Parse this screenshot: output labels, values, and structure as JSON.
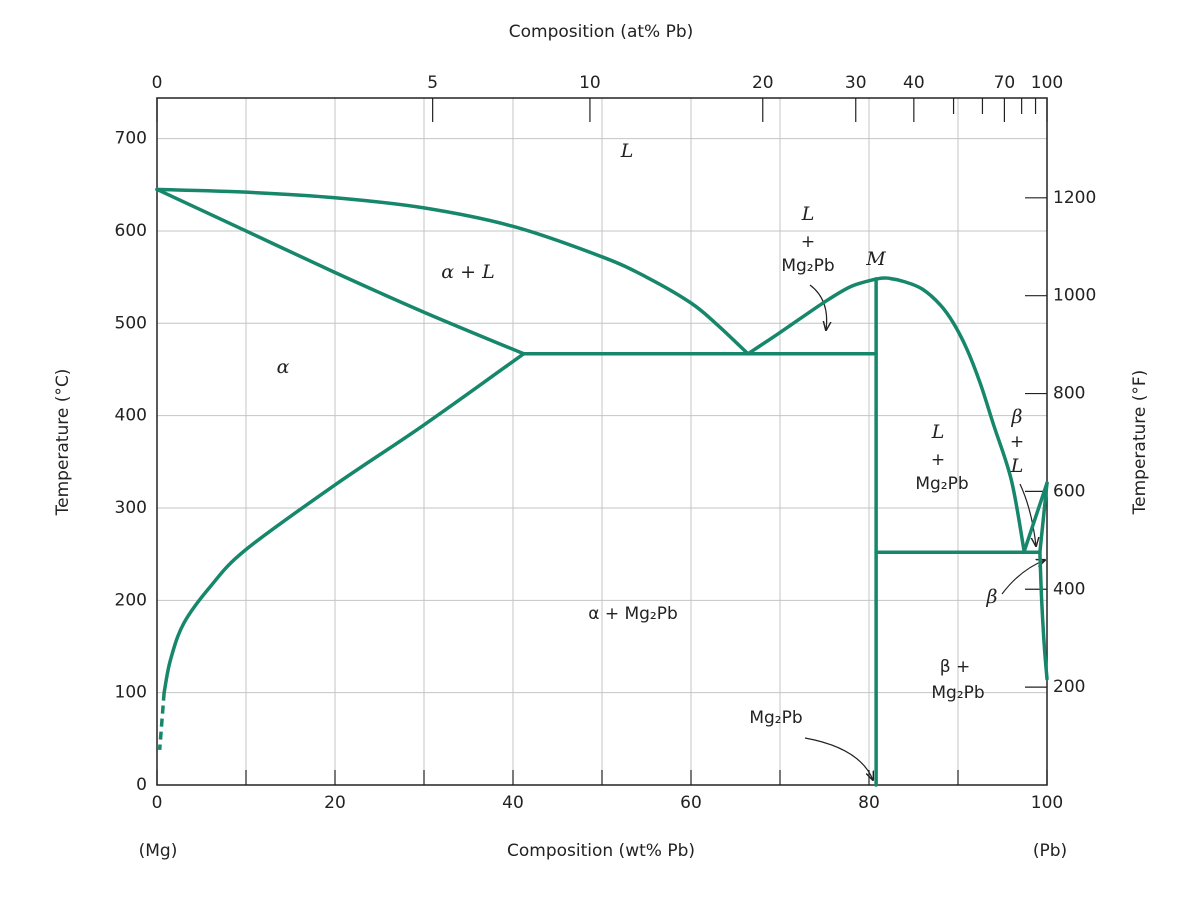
{
  "chart_data": {
    "type": "line",
    "x2label": "Composition (at% Pb)",
    "xlabel": "Composition (wt% Pb)",
    "ylabel": "Temperature (°C)",
    "y2label": "Temperature (°F)",
    "end_labels": [
      "(Mg)",
      "(Pb)"
    ],
    "xlim": [
      0,
      100
    ],
    "xticks": [
      0,
      20,
      40,
      60,
      80,
      100
    ],
    "xminor": [
      10,
      30,
      50,
      70,
      90
    ],
    "x2ticks": [
      0,
      5,
      10,
      20,
      30,
      40,
      70,
      100
    ],
    "x2minor": [
      50,
      60,
      80,
      90
    ],
    "ylim": [
      0,
      744
    ],
    "yticks": [
      0,
      100,
      200,
      300,
      400,
      500,
      600,
      700
    ],
    "y2lim": [
      0,
      1404
    ],
    "y2ticks": [
      200,
      400,
      600,
      800,
      1000,
      1200
    ],
    "grid": true,
    "annotations": [
      "L",
      "α + L",
      "α",
      "α + Mg₂Pb",
      "L",
      "+",
      "Mg₂Pb",
      "M",
      "L",
      "+",
      "Mg₂Pb",
      "β",
      "+",
      "L",
      "β",
      "β +",
      "Mg₂Pb",
      "Mg₂Pb"
    ],
    "series": [
      {
        "color": "#17876b",
        "x": [
          0,
          10,
          20,
          30,
          40,
          50,
          55,
          60,
          63,
          66.4
        ],
        "values": [
          645,
          642,
          636,
          625,
          605,
          572,
          550,
          522,
          498,
          467
        ]
      },
      {
        "color": "#17876b",
        "x": [
          0,
          10,
          20,
          30,
          41.2
        ],
        "values": [
          645,
          600,
          555,
          512,
          467
        ]
      },
      {
        "color": "#17876b",
        "x": [
          41.2,
          30,
          20,
          10,
          6,
          3,
          1.5,
          0.8
        ],
        "values": [
          467,
          390,
          325,
          255,
          215,
          175,
          135,
          100
        ]
      },
      {
        "color": "#17876b",
        "dash": true,
        "x": [
          0.8,
          0.3
        ],
        "values": [
          100,
          38
        ]
      },
      {
        "color": "#17876b",
        "x": [
          41.2,
          80.8
        ],
        "values": [
          467,
          467
        ]
      },
      {
        "color": "#17876b",
        "x": [
          66.4,
          70,
          75,
          78,
          80.8
        ],
        "values": [
          467,
          490,
          523,
          540,
          548
        ]
      },
      {
        "color": "#17876b",
        "x": [
          80.8,
          80.8
        ],
        "values": [
          0,
          548
        ]
      },
      {
        "color": "#17876b",
        "x": [
          80.8,
          82,
          84,
          86,
          88,
          89.5,
          91,
          92.5,
          94,
          96,
          97.4
        ],
        "values": [
          548,
          549,
          545,
          537,
          520,
          500,
          472,
          435,
          390,
          330,
          255
        ]
      },
      {
        "color": "#17876b",
        "x": [
          80.8,
          99.2
        ],
        "values": [
          252,
          252
        ]
      },
      {
        "color": "#17876b",
        "x": [
          97.4,
          100
        ],
        "values": [
          252,
          327
        ]
      },
      {
        "color": "#17876b",
        "x": [
          99.2,
          100
        ],
        "values": [
          252,
          327
        ]
      },
      {
        "color": "#17876b",
        "x": [
          99.2,
          99.4,
          99.7,
          100
        ],
        "values": [
          252,
          200,
          150,
          115
        ]
      }
    ]
  }
}
